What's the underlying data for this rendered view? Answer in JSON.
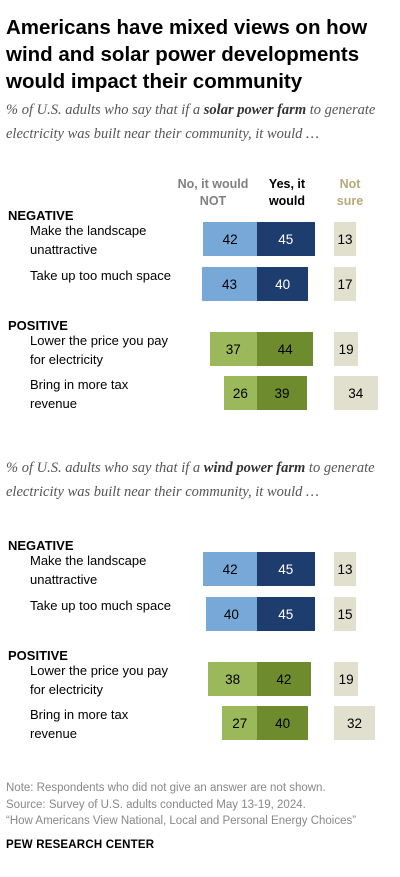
{
  "title": "Americans have mixed views on how wind and solar power developments would impact their community",
  "panels": [
    {
      "subtitle_before": "% of U.S. adults who say that if a ",
      "subtitle_bold": "solar power farm",
      "subtitle_after": " to generate electricity was built near their community, it would …"
    },
    {
      "subtitle_before": "% of U.S. adults who say that if a ",
      "subtitle_bold": "wind power farm",
      "subtitle_after": " to generate electricity was built near their community, it would …"
    }
  ],
  "column_headers": {
    "no": "No, it would NOT",
    "yes": "Yes, it would",
    "not_sure": "Not sure"
  },
  "colors": {
    "negative_no": "#78a8d8",
    "negative_yes": "#1d3d6e",
    "positive_no": "#9bb95a",
    "positive_yes": "#6e8c2d",
    "not_sure": "#e1dfce"
  },
  "chart_data": [
    {
      "type": "bar",
      "title": "% of U.S. adults who say that if a solar power farm to generate electricity was built near their community, it would …",
      "categories": [
        "Make the landscape unattractive",
        "Take up too much space",
        "Lower the price you pay for electricity",
        "Bring in more tax revenue"
      ],
      "groups": [
        {
          "name": "NEGATIVE",
          "rows": [
            {
              "label": "Make the landscape unattractive",
              "no": 42,
              "yes": 45,
              "not_sure": 13
            },
            {
              "label": "Take up too much space",
              "no": 43,
              "yes": 40,
              "not_sure": 17
            }
          ]
        },
        {
          "name": "POSITIVE",
          "rows": [
            {
              "label": "Lower the price you pay for electricity",
              "no": 37,
              "yes": 44,
              "not_sure": 19
            },
            {
              "label": "Bring in more tax revenue",
              "no": 26,
              "yes": 39,
              "not_sure": 34
            }
          ]
        }
      ],
      "series": [
        {
          "name": "No, it would NOT",
          "values": [
            42,
            43,
            37,
            26
          ]
        },
        {
          "name": "Yes, it would",
          "values": [
            45,
            40,
            44,
            39
          ]
        },
        {
          "name": "Not sure",
          "values": [
            13,
            17,
            19,
            34
          ]
        }
      ]
    },
    {
      "type": "bar",
      "title": "% of U.S. adults who say that if a wind power farm to generate electricity was built near their community, it would …",
      "categories": [
        "Make the landscape unattractive",
        "Take up too much space",
        "Lower the price you pay for electricity",
        "Bring in more tax revenue"
      ],
      "groups": [
        {
          "name": "NEGATIVE",
          "rows": [
            {
              "label": "Make the landscape unattractive",
              "no": 42,
              "yes": 45,
              "not_sure": 13
            },
            {
              "label": "Take up too much space",
              "no": 40,
              "yes": 45,
              "not_sure": 15
            }
          ]
        },
        {
          "name": "POSITIVE",
          "rows": [
            {
              "label": "Lower the price you pay for electricity",
              "no": 38,
              "yes": 42,
              "not_sure": 19
            },
            {
              "label": "Bring in more tax revenue",
              "no": 27,
              "yes": 40,
              "not_sure": 32
            }
          ]
        }
      ],
      "series": [
        {
          "name": "No, it would NOT",
          "values": [
            42,
            40,
            38,
            27
          ]
        },
        {
          "name": "Yes, it would",
          "values": [
            45,
            45,
            42,
            40
          ]
        },
        {
          "name": "Not sure",
          "values": [
            13,
            15,
            19,
            32
          ]
        }
      ]
    }
  ],
  "note": "Note: Respondents who did not give an answer are not shown.",
  "source": "Source: Survey of U.S. adults conducted May 13-19, 2024.",
  "report": "“How Americans View National, Local and Personal Energy Choices”",
  "org": "PEW RESEARCH CENTER"
}
